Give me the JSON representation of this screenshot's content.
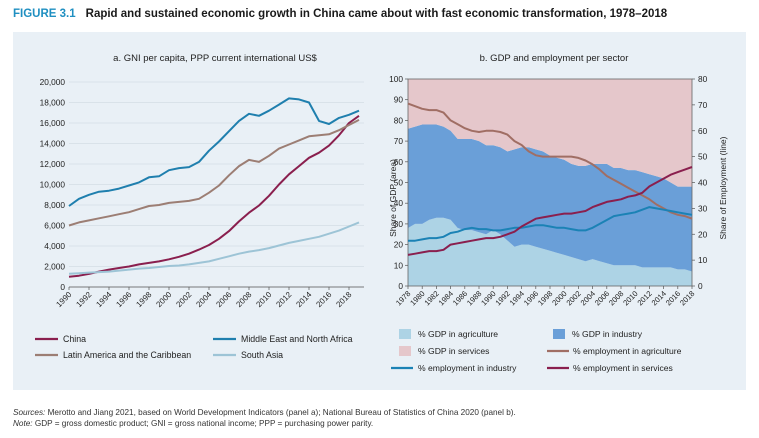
{
  "figure": {
    "label": "FIGURE 3.1",
    "title": "Rapid and sustained economic growth in China came about with fast economic transformation, 1978–2018"
  },
  "colors": {
    "china": "#8a1f4e",
    "mena": "#1f7fae",
    "lac": "#9c7e74",
    "south_asia": "#9dc4d6",
    "gdp_agriculture": "#add3e5",
    "gdp_industry": "#6a9fd8",
    "gdp_services": "#e5c7cb",
    "emp_agriculture": "#a06e64",
    "emp_industry": "#1b82b5",
    "emp_services": "#8a1f4e",
    "panel_bg": "#e9f0f6"
  },
  "chart_data": [
    {
      "type": "line",
      "title": "a. GNI per capita, PPP current international US$",
      "xlabel": "",
      "ylabel": "",
      "x": [
        1990,
        1991,
        1992,
        1993,
        1994,
        1995,
        1996,
        1997,
        1998,
        1999,
        2000,
        2001,
        2002,
        2003,
        2004,
        2005,
        2006,
        2007,
        2008,
        2009,
        2010,
        2011,
        2012,
        2013,
        2014,
        2015,
        2016,
        2017,
        2018,
        2019
      ],
      "xticks": [
        "1990",
        "1992",
        "1994",
        "1996",
        "1998",
        "2000",
        "2002",
        "2004",
        "2006",
        "2008",
        "2010",
        "2012",
        "2014",
        "2016",
        "2018"
      ],
      "xlim": [
        1990,
        2019.5
      ],
      "ylim": [
        0,
        20000
      ],
      "yticks": [
        "0",
        "2,000",
        "4,000",
        "6,000",
        "8,000",
        "10,000",
        "12,000",
        "14,000",
        "16,000",
        "18,000",
        "20,000"
      ],
      "series": [
        {
          "name": "China",
          "color_key": "china",
          "values": [
            1000,
            1100,
            1280,
            1500,
            1700,
            1850,
            2000,
            2200,
            2350,
            2500,
            2700,
            2950,
            3250,
            3650,
            4100,
            4700,
            5450,
            6400,
            7250,
            7950,
            8900,
            10000,
            11000,
            11800,
            12600,
            13100,
            13800,
            14800,
            16000,
            16700
          ]
        },
        {
          "name": "Middle East and North Africa",
          "color_key": "mena",
          "values": [
            7900,
            8600,
            9000,
            9300,
            9400,
            9600,
            9900,
            10200,
            10700,
            10800,
            11400,
            11600,
            11700,
            12200,
            13300,
            14200,
            15200,
            16200,
            16900,
            16700,
            17200,
            17800,
            18400,
            18300,
            18000,
            16200,
            15900,
            16500,
            16800,
            17200
          ]
        },
        {
          "name": "Latin America and the Caribbean",
          "color_key": "lac",
          "values": [
            6000,
            6300,
            6500,
            6700,
            6900,
            7100,
            7300,
            7600,
            7900,
            8000,
            8200,
            8300,
            8400,
            8600,
            9200,
            9900,
            10900,
            11800,
            12400,
            12200,
            12800,
            13500,
            13900,
            14300,
            14700,
            14800,
            14900,
            15300,
            15800,
            16300
          ]
        },
        {
          "name": "South Asia",
          "color_key": "south_asia",
          "values": [
            1300,
            1350,
            1400,
            1450,
            1500,
            1600,
            1700,
            1800,
            1850,
            1950,
            2050,
            2100,
            2200,
            2350,
            2500,
            2750,
            3000,
            3250,
            3450,
            3600,
            3800,
            4050,
            4300,
            4500,
            4700,
            4900,
            5200,
            5500,
            5900,
            6300
          ]
        }
      ]
    },
    {
      "type": "area",
      "title": "b. GDP and employment per sector",
      "ylabel": "Share of GDP (area)",
      "y2label": "Share of Employment (line)",
      "x": [
        1978,
        1979,
        1980,
        1981,
        1982,
        1983,
        1984,
        1985,
        1986,
        1987,
        1988,
        1989,
        1990,
        1991,
        1992,
        1993,
        1994,
        1995,
        1996,
        1997,
        1998,
        1999,
        2000,
        2001,
        2002,
        2003,
        2004,
        2005,
        2006,
        2007,
        2008,
        2009,
        2010,
        2011,
        2012,
        2013,
        2014,
        2015,
        2016,
        2017,
        2018
      ],
      "xticks": [
        "1978",
        "1980",
        "1982",
        "1984",
        "1986",
        "1988",
        "1990",
        "1992",
        "1994",
        "1996",
        "1998",
        "2000",
        "2002",
        "2004",
        "2006",
        "2008",
        "2010",
        "2012",
        "2014",
        "2016",
        "2018"
      ],
      "xlim": [
        1978,
        2018
      ],
      "ylim": [
        0,
        100
      ],
      "y2lim": [
        0,
        80
      ],
      "yticks": [
        "0",
        "10",
        "20",
        "30",
        "40",
        "50",
        "60",
        "70",
        "80",
        "90",
        "100"
      ],
      "y2ticks": [
        "0",
        "10",
        "20",
        "30",
        "40",
        "50",
        "60",
        "70",
        "80"
      ],
      "area_series": [
        {
          "name": "% GDP in agriculture",
          "color_key": "gdp_agriculture",
          "values": [
            28,
            30,
            30,
            32,
            33,
            33,
            32,
            28,
            27,
            27,
            26,
            25,
            27,
            25,
            22,
            19,
            20,
            20,
            19,
            18,
            17,
            16,
            15,
            14,
            13,
            12,
            13,
            12,
            11,
            10,
            10,
            10,
            10,
            9,
            9,
            9,
            9,
            9,
            8,
            8,
            7
          ]
        },
        {
          "name": "% GDP in industry",
          "color_key": "gdp_industry",
          "values": [
            48,
            47,
            48,
            46,
            45,
            44,
            43,
            43,
            44,
            44,
            44,
            43,
            41,
            42,
            43,
            47,
            47,
            47,
            47,
            47,
            46,
            46,
            46,
            45,
            45,
            46,
            46,
            47,
            48,
            47,
            47,
            46,
            46,
            46,
            45,
            44,
            43,
            41,
            40,
            40,
            41
          ]
        },
        {
          "name": "% GDP in services",
          "color_key": "gdp_services",
          "values": [
            24,
            23,
            22,
            22,
            22,
            23,
            25,
            29,
            29,
            29,
            30,
            32,
            32,
            33,
            35,
            34,
            33,
            33,
            34,
            35,
            37,
            38,
            39,
            41,
            42,
            42,
            41,
            41,
            41,
            43,
            43,
            44,
            44,
            45,
            46,
            47,
            48,
            50,
            52,
            52,
            52
          ]
        }
      ],
      "line_series": [
        {
          "name": "% employment in agriculture",
          "color_key": "emp_agriculture",
          "values": [
            70.5,
            69.5,
            68.5,
            68,
            68,
            67,
            64,
            62.5,
            61,
            60,
            59.5,
            60,
            60,
            59.5,
            58.5,
            56,
            54.5,
            52,
            50.5,
            50,
            50,
            50,
            50,
            50,
            49.5,
            48.5,
            47,
            45,
            42.5,
            41,
            39.5,
            38,
            36.5,
            35,
            33.5,
            31.5,
            30,
            28.5,
            27.5,
            27,
            26
          ]
        },
        {
          "name": "% employment in industry",
          "color_key": "emp_industry",
          "values": [
            17.5,
            17.5,
            18,
            18.5,
            18.5,
            19,
            20.5,
            21,
            22,
            22.5,
            22,
            22,
            21.5,
            21.5,
            22,
            22.5,
            22.5,
            23,
            23.5,
            23.5,
            23,
            22.5,
            22.5,
            22,
            21.5,
            21.5,
            22.5,
            24,
            25.5,
            27,
            27.5,
            28,
            28.5,
            29.5,
            30.5,
            30,
            29.5,
            29,
            28.5,
            28,
            27.5
          ]
        },
        {
          "name": "% employment in services",
          "color_key": "emp_services",
          "values": [
            12,
            12.5,
            13,
            13.5,
            13.5,
            14,
            16,
            16.5,
            17,
            17.5,
            18,
            18.5,
            18.5,
            19,
            20,
            21,
            23,
            24.5,
            26,
            26.5,
            27,
            27.5,
            28,
            28,
            28.5,
            29,
            30.5,
            31.5,
            32.5,
            33,
            33.5,
            34.5,
            35,
            36,
            38.5,
            40,
            41.5,
            43,
            44,
            45,
            46
          ]
        }
      ]
    }
  ],
  "legend_a": [
    "China",
    "Middle East and North Africa",
    "Latin America and the Caribbean",
    "South Asia"
  ],
  "legend_b": [
    "% GDP in agriculture",
    "% GDP in industry",
    "% GDP in services",
    "% employment in agriculture",
    "% employment in industry",
    "% employment in services"
  ],
  "footnotes": {
    "sources_label": "Sources:",
    "sources_text": " Merotto and Jiang 2021, based on World Development Indicators (panel a); National Bureau of Statistics of China 2020 (panel b).",
    "note_label": "Note:",
    "note_text": " GDP = gross domestic product; GNI = gross national income; PPP = purchasing power parity."
  }
}
